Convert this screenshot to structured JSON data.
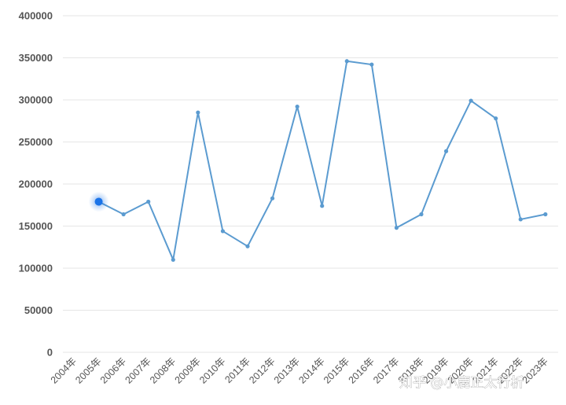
{
  "chart_data": {
    "type": "line",
    "title": "",
    "xlabel": "",
    "ylabel": "",
    "categories": [
      "2004年",
      "2005年",
      "2006年",
      "2007年",
      "2008年",
      "2009年",
      "2010年",
      "2011年",
      "2012年",
      "2013年",
      "2014年",
      "2015年",
      "2016年",
      "2017年",
      "2018年",
      "2019年",
      "2020年",
      "2021年",
      "2022年",
      "2023年"
    ],
    "x_tick_labels": [
      "2004年",
      "2005年",
      "2006年",
      "2007年",
      "2008年",
      "2009年",
      "2010年",
      "2011年",
      "2012年",
      "2013年",
      "2014年",
      "2015年",
      "2016年",
      "2017年",
      "2018年",
      "2019年",
      "2020年",
      "2021年",
      "2022年",
      "2023年"
    ],
    "y_ticks": [
      0,
      50000,
      100000,
      150000,
      200000,
      250000,
      300000,
      350000,
      400000
    ],
    "y_tick_labels": [
      "0",
      "50000",
      "100000",
      "150000",
      "200000",
      "250000",
      "300000",
      "350000",
      "400000"
    ],
    "ylim": [
      0,
      400000
    ],
    "grid": true,
    "legend": "none",
    "series": [
      {
        "color": "#5b9bd0",
        "values": [
          null,
          179000,
          164000,
          179000,
          110000,
          285000,
          144000,
          126000,
          183000,
          292000,
          174000,
          346000,
          342000,
          148000,
          164000,
          239000,
          299000,
          278000,
          158000,
          164000
        ]
      }
    ],
    "highlight": {
      "index": 1,
      "color": "#1a73e8"
    }
  },
  "watermark": {
    "text": "知乎 @小鹿正太行析"
  }
}
